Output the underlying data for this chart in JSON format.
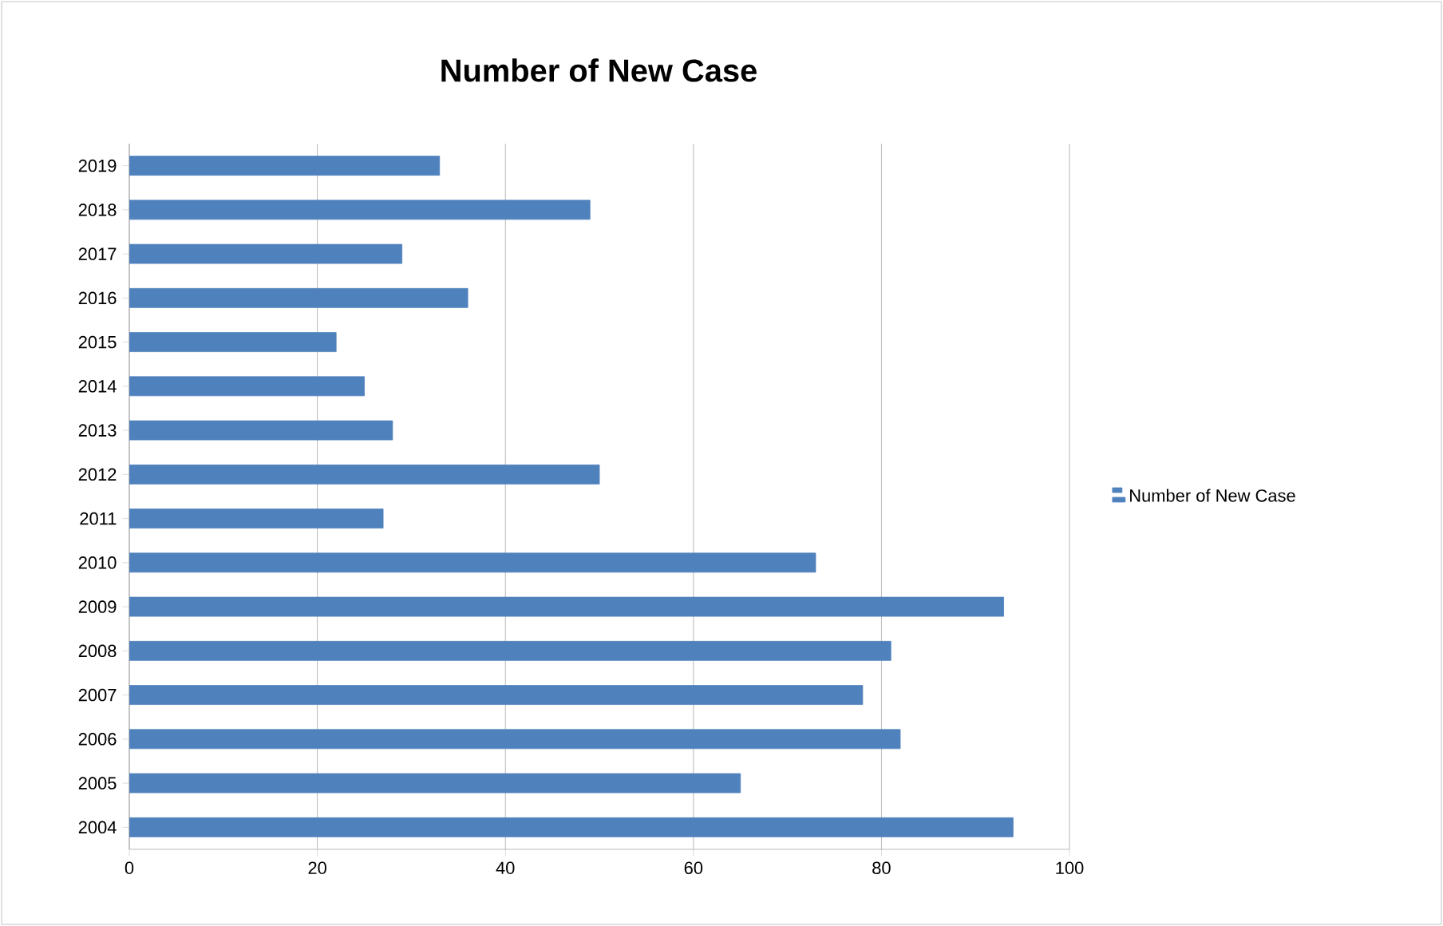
{
  "chart_data": {
    "type": "bar",
    "orientation": "horizontal",
    "title": "Number of New Case",
    "categories": [
      "2019",
      "2018",
      "2017",
      "2016",
      "2015",
      "2014",
      "2013",
      "2012",
      "2011",
      "2010",
      "2009",
      "2008",
      "2007",
      "2006",
      "2005",
      "2004"
    ],
    "series": [
      {
        "name": "Number of New Case",
        "color": "#4f81bd",
        "values": [
          33,
          49,
          29,
          36,
          22,
          25,
          28,
          50,
          27,
          73,
          93,
          81,
          78,
          82,
          65,
          94
        ]
      }
    ],
    "xlim": [
      0,
      100
    ],
    "xticks": [
      0,
      20,
      40,
      60,
      80,
      100
    ],
    "grid": "x",
    "legend": "right"
  }
}
